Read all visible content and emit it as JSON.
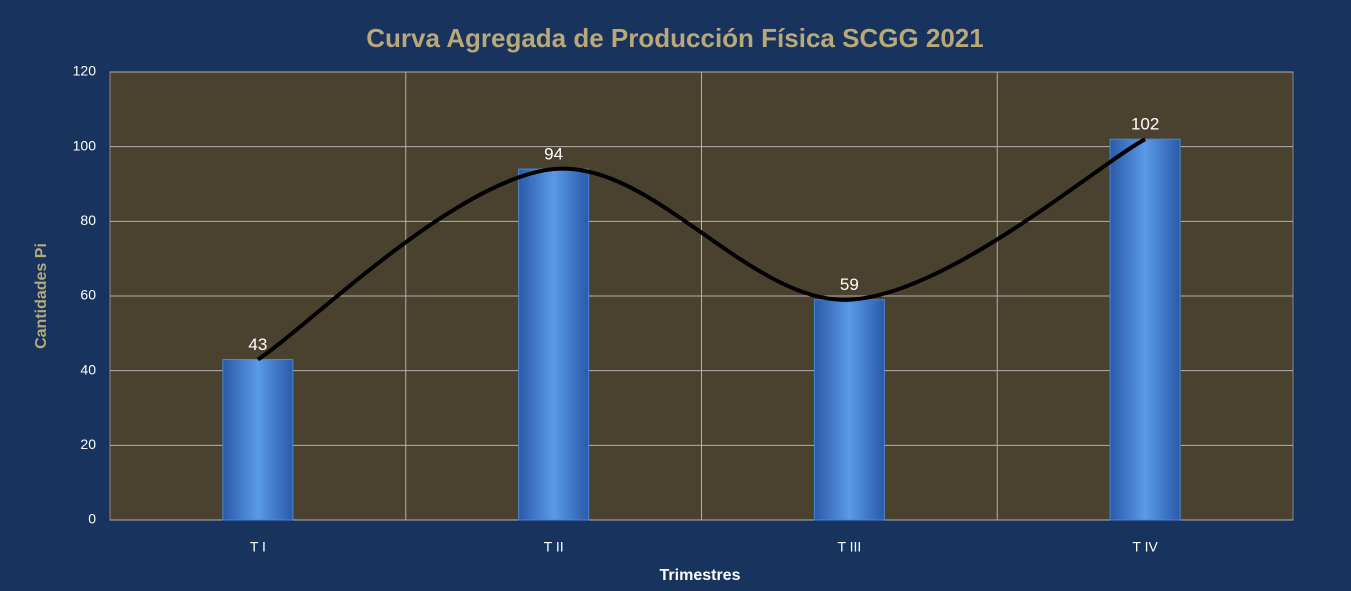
{
  "chart_data": {
    "type": "bar",
    "title": "Curva Agregada de Producción Física  SCGG 2021",
    "y_label": "Cantidades Pi",
    "x_label": "Trimestres",
    "categories": [
      "T I",
      "T II",
      "T III",
      "T IV"
    ],
    "values": [
      43,
      94,
      59,
      102
    ],
    "color": "#4a86d8",
    "smooth_line": true,
    "line_color": "#000000",
    "ylim": [
      0,
      120
    ],
    "yticks": [
      0,
      20,
      40,
      60,
      80,
      100,
      120
    ],
    "grid": true
  }
}
